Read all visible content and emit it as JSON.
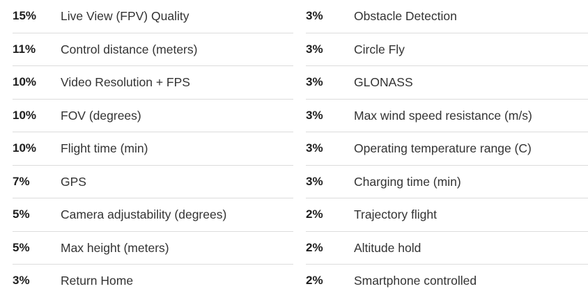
{
  "left": [
    {
      "pct": "15%",
      "label": "Live View (FPV) Quality"
    },
    {
      "pct": "11%",
      "label": "Control distance (meters)"
    },
    {
      "pct": "10%",
      "label": "Video Resolution + FPS"
    },
    {
      "pct": "10%",
      "label": "FOV (degrees)"
    },
    {
      "pct": "10%",
      "label": "Flight time (min)"
    },
    {
      "pct": "7%",
      "label": "GPS"
    },
    {
      "pct": "5%",
      "label": "Camera adjustability (degrees)"
    },
    {
      "pct": "5%",
      "label": "Max height (meters)"
    },
    {
      "pct": "3%",
      "label": "Return Home"
    }
  ],
  "right": [
    {
      "pct": "3%",
      "label": "Obstacle Detection"
    },
    {
      "pct": "3%",
      "label": "Circle Fly"
    },
    {
      "pct": "3%",
      "label": "GLONASS"
    },
    {
      "pct": "3%",
      "label": "Max wind speed resistance (m/s)"
    },
    {
      "pct": "3%",
      "label": "Operating temperature range (C)"
    },
    {
      "pct": "3%",
      "label": "Charging time (min)"
    },
    {
      "pct": "2%",
      "label": "Trajectory flight"
    },
    {
      "pct": "2%",
      "label": "Altitude hold"
    },
    {
      "pct": "2%",
      "label": "Smartphone controlled"
    }
  ]
}
